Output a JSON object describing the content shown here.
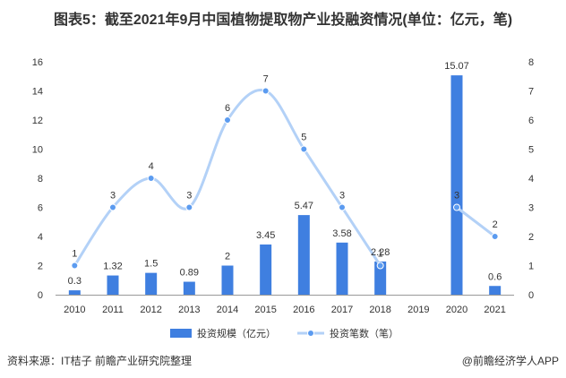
{
  "chart_data": {
    "type": "bar",
    "title": "图表5：截至2021年9月中国植物提取物产业投融资情况(单位：亿元，笔)",
    "categories": [
      "2010",
      "2011",
      "2012",
      "2013",
      "2014",
      "2015",
      "2016",
      "2017",
      "2018",
      "2019",
      "2020",
      "2021"
    ],
    "series": [
      {
        "name": "投资规模（亿元）",
        "type": "bar",
        "axis": "left",
        "values": [
          0.3,
          1.32,
          1.5,
          0.89,
          2,
          3.45,
          5.47,
          3.58,
          2.28,
          null,
          15.07,
          0.6
        ],
        "labels": [
          "0.3",
          "1.32",
          "1.5",
          "0.89",
          "2",
          "3.45",
          "5.47",
          "3.58",
          "2.28",
          "",
          "15.07",
          "0.6"
        ]
      },
      {
        "name": "投资笔数（笔）",
        "type": "line",
        "axis": "right",
        "values": [
          1,
          3,
          4,
          3,
          6,
          7,
          5,
          3,
          1,
          null,
          3,
          2
        ],
        "labels": [
          "1",
          "3",
          "4",
          "3",
          "6",
          "7",
          "5",
          "3",
          "1",
          "",
          "3",
          "2"
        ]
      }
    ],
    "y_left": {
      "min": 0,
      "max": 16,
      "ticks": [
        0,
        2,
        4,
        6,
        8,
        10,
        12,
        14,
        16
      ]
    },
    "y_right": {
      "min": 0,
      "max": 8,
      "ticks": [
        0,
        1,
        2,
        3,
        4,
        5,
        6,
        7,
        8
      ]
    },
    "legend_position": "bottom",
    "grid": false,
    "colors": {
      "bar": "#3f7fe0",
      "line": "#b3d1f7",
      "marker": "#5b9bf0",
      "axis": "#999999",
      "text": "#333333"
    }
  },
  "footer": {
    "source": "资料来源：IT桔子 前瞻产业研究院整理",
    "brand": "@前瞻经济学人APP"
  }
}
